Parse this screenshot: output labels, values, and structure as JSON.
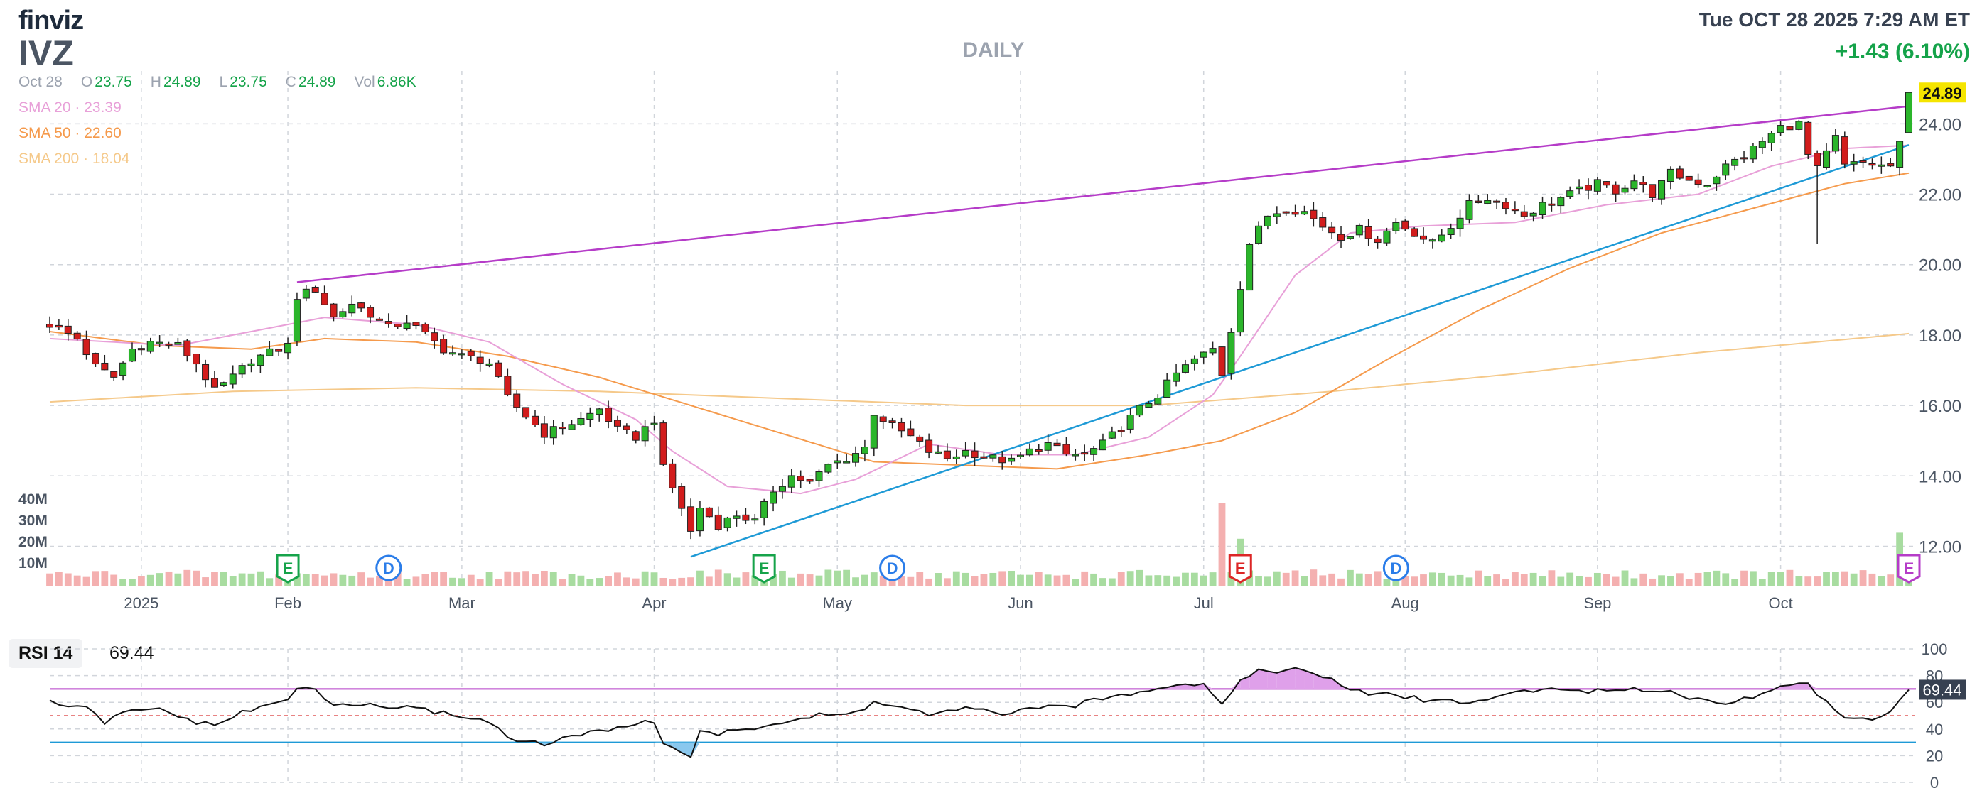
{
  "header": {
    "logo": "finviz",
    "ticker": "IVZ",
    "period": "DAILY",
    "datetime": "Tue OCT 28 2025 7:29 AM ET",
    "change": "+1.43 (6.10%)"
  },
  "ohlc": {
    "date": "Oct 28",
    "open_label": "O",
    "open": "23.75",
    "high_label": "H",
    "high": "24.89",
    "low_label": "L",
    "low": "23.75",
    "close_label": "C",
    "close": "24.89",
    "vol_label": "Vol",
    "vol": "6.86K"
  },
  "sma": [
    {
      "label": "SMA 20",
      "sep": "·",
      "value": "23.39",
      "color": "#e8a0d8"
    },
    {
      "label": "SMA 50",
      "sep": "·",
      "value": "22.60",
      "color": "#f59a4c"
    },
    {
      "label": "SMA 200",
      "sep": "·",
      "value": "18.04",
      "color": "#f5c98a"
    }
  ],
  "last_price_tag": "24.89",
  "rsi": {
    "label": "RSI 14",
    "value": "69.44"
  },
  "colors": {
    "up": "#2bb52b",
    "down": "#d21c1c",
    "vol_up": "#a8dca0",
    "vol_down": "#f4b0b0",
    "sma20": "#e8a0d8",
    "sma50": "#f59a4c",
    "sma200": "#f5c98a",
    "trend_upper": "#b53cc8",
    "trend_lower": "#1e9ad6",
    "earnings": "#16a34a",
    "earnings_latest": "#dc2626",
    "earnings_next": "#b53cc8",
    "dividend": "#2b7de9"
  },
  "chart_data": {
    "type": "candlestick",
    "price_axis": {
      "min": 10.9,
      "max": 25.5,
      "ticks": [
        "12.00",
        "14.00",
        "16.00",
        "18.00",
        "20.00",
        "22.00",
        "24.00"
      ]
    },
    "volume_axis": {
      "ticks": [
        "40M",
        "30M",
        "20M",
        "10M"
      ]
    },
    "x_labels": [
      {
        "label": "2025",
        "index": 10
      },
      {
        "label": "Feb",
        "index": 26
      },
      {
        "label": "Mar",
        "index": 45
      },
      {
        "label": "Apr",
        "index": 66
      },
      {
        "label": "May",
        "index": 86
      },
      {
        "label": "Jun",
        "index": 106
      },
      {
        "label": "Jul",
        "index": 126
      },
      {
        "label": "Aug",
        "index": 148
      },
      {
        "label": "Sep",
        "index": 169
      },
      {
        "label": "Oct",
        "index": 189
      }
    ],
    "anchors": [
      [
        0,
        18.3
      ],
      [
        3,
        17.9
      ],
      [
        5,
        17.1
      ],
      [
        7,
        16.8
      ],
      [
        9,
        17.6
      ],
      [
        11,
        17.8
      ],
      [
        14,
        17.7
      ],
      [
        16,
        17.2
      ],
      [
        18,
        16.4
      ],
      [
        20,
        16.8
      ],
      [
        22,
        17.3
      ],
      [
        24,
        17.5
      ],
      [
        26,
        17.7
      ],
      [
        27,
        19.1
      ],
      [
        29,
        19.3
      ],
      [
        31,
        18.5
      ],
      [
        33,
        18.9
      ],
      [
        35,
        18.6
      ],
      [
        37,
        18.2
      ],
      [
        39,
        18.4
      ],
      [
        41,
        18.0
      ],
      [
        43,
        17.6
      ],
      [
        45,
        17.4
      ],
      [
        47,
        17.3
      ],
      [
        48,
        17.2
      ],
      [
        50,
        16.2
      ],
      [
        52,
        15.7
      ],
      [
        54,
        15.2
      ],
      [
        56,
        15.4
      ],
      [
        58,
        15.6
      ],
      [
        60,
        15.9
      ],
      [
        62,
        15.3
      ],
      [
        64,
        15.1
      ],
      [
        66,
        15.6
      ],
      [
        67,
        14.2
      ],
      [
        69,
        13.1
      ],
      [
        70,
        12.4
      ],
      [
        71,
        13.1
      ],
      [
        73,
        12.6
      ],
      [
        75,
        12.9
      ],
      [
        77,
        12.7
      ],
      [
        79,
        13.6
      ],
      [
        81,
        14.0
      ],
      [
        83,
        13.8
      ],
      [
        85,
        14.3
      ],
      [
        87,
        14.5
      ],
      [
        89,
        14.8
      ],
      [
        90,
        15.8
      ],
      [
        92,
        15.4
      ],
      [
        94,
        15.1
      ],
      [
        96,
        14.7
      ],
      [
        98,
        14.5
      ],
      [
        100,
        14.7
      ],
      [
        103,
        14.5
      ],
      [
        105,
        14.4
      ],
      [
        107,
        14.7
      ],
      [
        109,
        14.9
      ],
      [
        111,
        14.6
      ],
      [
        113,
        14.6
      ],
      [
        115,
        14.9
      ],
      [
        117,
        15.4
      ],
      [
        119,
        15.9
      ],
      [
        121,
        16.3
      ],
      [
        123,
        16.9
      ],
      [
        125,
        17.3
      ],
      [
        127,
        17.6
      ],
      [
        128,
        16.9
      ],
      [
        130,
        19.4
      ],
      [
        131,
        20.6
      ],
      [
        133,
        21.4
      ],
      [
        135,
        21.6
      ],
      [
        137,
        21.5
      ],
      [
        139,
        21.1
      ],
      [
        141,
        20.8
      ],
      [
        143,
        21.0
      ],
      [
        145,
        20.7
      ],
      [
        147,
        21.2
      ],
      [
        149,
        20.9
      ],
      [
        151,
        20.6
      ],
      [
        153,
        21.1
      ],
      [
        155,
        21.7
      ],
      [
        157,
        21.9
      ],
      [
        159,
        21.7
      ],
      [
        161,
        21.4
      ],
      [
        163,
        21.7
      ],
      [
        165,
        21.9
      ],
      [
        167,
        22.1
      ],
      [
        169,
        22.3
      ],
      [
        171,
        22.1
      ],
      [
        173,
        22.4
      ],
      [
        175,
        22.0
      ],
      [
        177,
        22.6
      ],
      [
        179,
        22.4
      ],
      [
        181,
        22.3
      ],
      [
        183,
        22.8
      ],
      [
        185,
        23.1
      ],
      [
        187,
        23.5
      ],
      [
        189,
        23.9
      ],
      [
        191,
        24.0
      ],
      [
        192,
        23.1
      ],
      [
        193,
        22.7
      ],
      [
        195,
        23.6
      ],
      [
        196,
        22.8
      ],
      [
        198,
        22.9
      ],
      [
        200,
        22.8
      ],
      [
        201,
        22.8
      ],
      [
        202,
        23.4
      ],
      [
        203,
        24.89
      ]
    ],
    "volume_spikes": [
      [
        128,
        4.2
      ],
      [
        130,
        2.4
      ],
      [
        202,
        2.7
      ],
      [
        203,
        0.9
      ]
    ],
    "sma_lines": {
      "sma20": [
        [
          0,
          17.9
        ],
        [
          14,
          17.7
        ],
        [
          26,
          18.3
        ],
        [
          30,
          18.5
        ],
        [
          40,
          18.3
        ],
        [
          48,
          17.8
        ],
        [
          56,
          16.6
        ],
        [
          64,
          15.6
        ],
        [
          68,
          14.7
        ],
        [
          74,
          13.7
        ],
        [
          82,
          13.5
        ],
        [
          88,
          13.9
        ],
        [
          96,
          14.9
        ],
        [
          104,
          14.6
        ],
        [
          112,
          14.6
        ],
        [
          120,
          15.1
        ],
        [
          127,
          16.3
        ],
        [
          130,
          17.4
        ],
        [
          136,
          19.7
        ],
        [
          142,
          20.9
        ],
        [
          150,
          21.1
        ],
        [
          160,
          21.2
        ],
        [
          170,
          21.7
        ],
        [
          180,
          22.0
        ],
        [
          188,
          22.8
        ],
        [
          196,
          23.3
        ],
        [
          203,
          23.39
        ]
      ],
      "sma50": [
        [
          0,
          18.1
        ],
        [
          12,
          17.7
        ],
        [
          22,
          17.6
        ],
        [
          30,
          17.9
        ],
        [
          40,
          17.8
        ],
        [
          50,
          17.4
        ],
        [
          60,
          16.8
        ],
        [
          70,
          16.0
        ],
        [
          80,
          15.2
        ],
        [
          90,
          14.4
        ],
        [
          100,
          14.3
        ],
        [
          110,
          14.2
        ],
        [
          120,
          14.6
        ],
        [
          128,
          15.0
        ],
        [
          136,
          15.8
        ],
        [
          146,
          17.3
        ],
        [
          156,
          18.7
        ],
        [
          166,
          19.9
        ],
        [
          176,
          20.9
        ],
        [
          186,
          21.6
        ],
        [
          196,
          22.3
        ],
        [
          203,
          22.6
        ]
      ],
      "sma200": [
        [
          0,
          16.1
        ],
        [
          20,
          16.4
        ],
        [
          40,
          16.5
        ],
        [
          60,
          16.4
        ],
        [
          80,
          16.2
        ],
        [
          100,
          16.0
        ],
        [
          120,
          16.0
        ],
        [
          140,
          16.4
        ],
        [
          160,
          16.9
        ],
        [
          180,
          17.5
        ],
        [
          203,
          18.04
        ]
      ]
    },
    "trendlines": [
      {
        "name": "upper",
        "from": [
          27,
          19.5
        ],
        "to": [
          203,
          24.5
        ]
      },
      {
        "name": "lower",
        "from": [
          70,
          11.7
        ],
        "to": [
          203,
          23.4
        ]
      }
    ],
    "events": [
      {
        "letter": "E",
        "index": 26,
        "kind": "earnings"
      },
      {
        "letter": "D",
        "index": 37,
        "kind": "dividend"
      },
      {
        "letter": "E",
        "index": 78,
        "kind": "earnings"
      },
      {
        "letter": "D",
        "index": 92,
        "kind": "dividend"
      },
      {
        "letter": "E",
        "index": 130,
        "kind": "earnings_latest"
      },
      {
        "letter": "D",
        "index": 147,
        "kind": "dividend"
      },
      {
        "letter": "E",
        "index": 203,
        "kind": "earnings_next"
      }
    ],
    "rsi": {
      "ticks": [
        "100",
        "80",
        "60",
        "40",
        "20",
        "0"
      ],
      "overbought": 70,
      "oversold": 30,
      "mid": 50,
      "anchors": [
        [
          0,
          60
        ],
        [
          4,
          55
        ],
        [
          6,
          45
        ],
        [
          8,
          52
        ],
        [
          12,
          55
        ],
        [
          16,
          45
        ],
        [
          18,
          42
        ],
        [
          20,
          50
        ],
        [
          24,
          58
        ],
        [
          26,
          62
        ],
        [
          27,
          72
        ],
        [
          29,
          68
        ],
        [
          31,
          58
        ],
        [
          35,
          58
        ],
        [
          40,
          55
        ],
        [
          45,
          50
        ],
        [
          48,
          45
        ],
        [
          50,
          35
        ],
        [
          52,
          30
        ],
        [
          54,
          28
        ],
        [
          56,
          33
        ],
        [
          60,
          38
        ],
        [
          62,
          42
        ],
        [
          64,
          44
        ],
        [
          66,
          45
        ],
        [
          67,
          30
        ],
        [
          69,
          23
        ],
        [
          70,
          20
        ],
        [
          71,
          38
        ],
        [
          73,
          36
        ],
        [
          76,
          40
        ],
        [
          80,
          45
        ],
        [
          84,
          50
        ],
        [
          88,
          52
        ],
        [
          90,
          60
        ],
        [
          94,
          55
        ],
        [
          96,
          50
        ],
        [
          100,
          55
        ],
        [
          104,
          52
        ],
        [
          108,
          55
        ],
        [
          112,
          58
        ],
        [
          116,
          64
        ],
        [
          120,
          70
        ],
        [
          124,
          75
        ],
        [
          126,
          73
        ],
        [
          128,
          60
        ],
        [
          130,
          76
        ],
        [
          132,
          84
        ],
        [
          136,
          84
        ],
        [
          140,
          78
        ],
        [
          142,
          68
        ],
        [
          146,
          66
        ],
        [
          150,
          62
        ],
        [
          156,
          60
        ],
        [
          160,
          68
        ],
        [
          164,
          70
        ],
        [
          170,
          68
        ],
        [
          176,
          70
        ],
        [
          180,
          62
        ],
        [
          184,
          60
        ],
        [
          188,
          70
        ],
        [
          192,
          74
        ],
        [
          194,
          60
        ],
        [
          196,
          48
        ],
        [
          200,
          48
        ],
        [
          203,
          69.44
        ]
      ]
    }
  }
}
